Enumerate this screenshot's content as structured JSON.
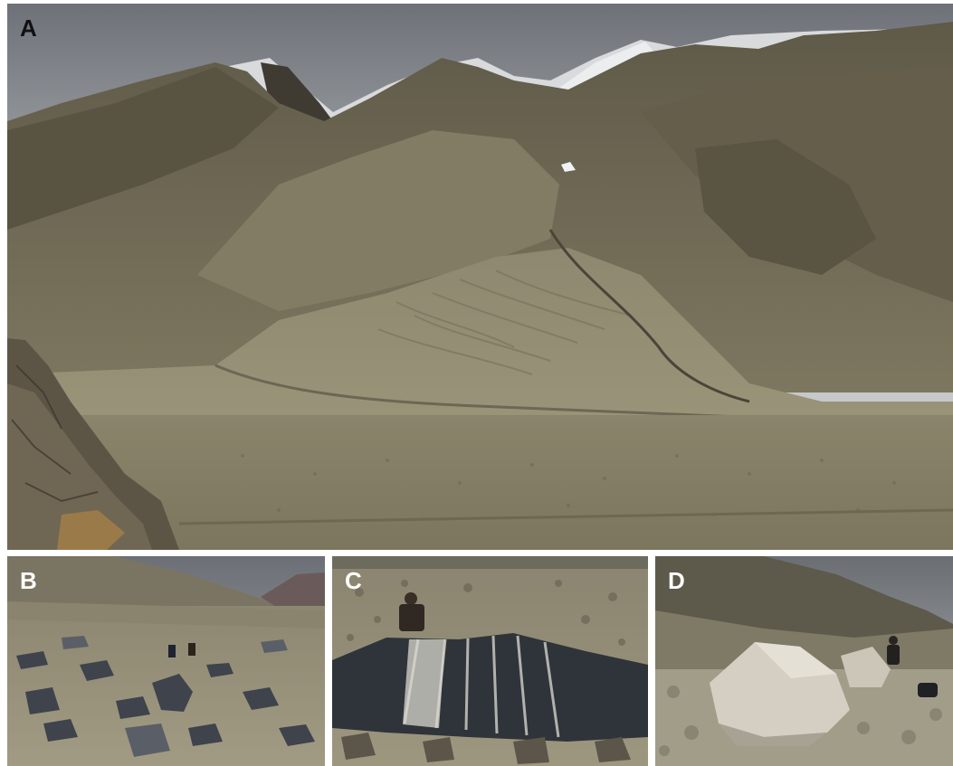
{
  "figure": {
    "panels": [
      {
        "label": "A"
      },
      {
        "label": "B"
      },
      {
        "label": "C"
      },
      {
        "label": "D"
      }
    ]
  }
}
